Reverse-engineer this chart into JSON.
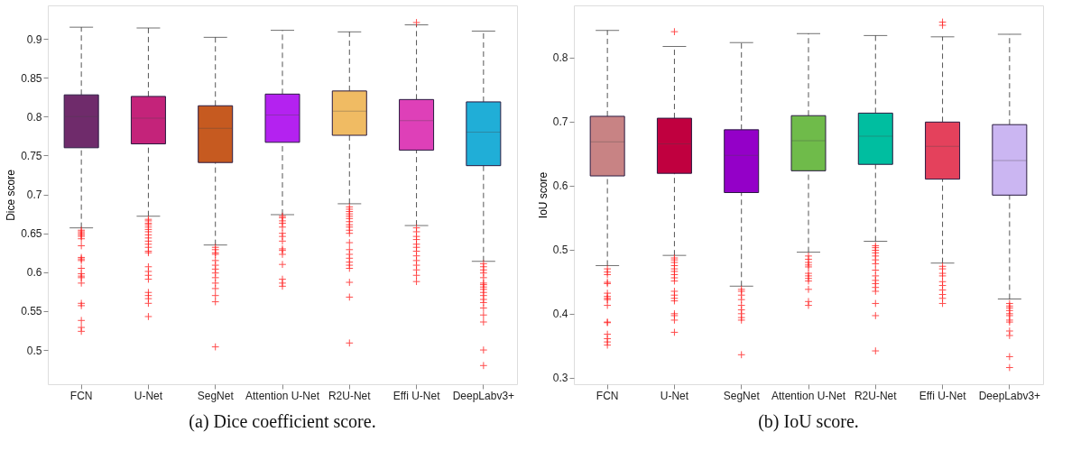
{
  "chart_data": [
    {
      "type": "box",
      "ylabel": "Dice score",
      "annotations": [
        "(a) Dice coefficient score."
      ],
      "categories": [
        "FCN",
        "U-Net",
        "SegNet",
        "Attention U-Net",
        "R2U-Net",
        "Effi U-Net",
        "DeepLabv3+"
      ],
      "colors": [
        "#6f2b6b",
        "#c4237a",
        "#c65a20",
        "#b422f0",
        "#f0bb63",
        "#de40b8",
        "#20aed7"
      ],
      "ylim": [
        0.456,
        0.943
      ],
      "yticks": [
        0.5,
        0.55,
        0.6,
        0.65,
        0.7,
        0.75,
        0.8,
        0.85,
        0.9
      ],
      "grid": false,
      "marker": "cross",
      "line_style": "dashed",
      "boxes": [
        {
          "low": 0.657,
          "q1": 0.76,
          "median": 0.8,
          "q3": 0.828,
          "high": 0.915,
          "outliers": [
            0.654,
            0.652,
            0.65,
            0.648,
            0.646,
            0.643,
            0.634,
            0.619,
            0.617,
            0.615,
            0.605,
            0.598,
            0.595,
            0.593,
            0.586,
            0.56,
            0.557,
            0.538,
            0.529,
            0.524
          ]
        },
        {
          "low": 0.672,
          "q1": 0.765,
          "median": 0.798,
          "q3": 0.826,
          "high": 0.914,
          "outliers": [
            0.668,
            0.666,
            0.663,
            0.661,
            0.658,
            0.655,
            0.652,
            0.648,
            0.644,
            0.64,
            0.636,
            0.632,
            0.627,
            0.625,
            0.607,
            0.601,
            0.596,
            0.591,
            0.574,
            0.57,
            0.566,
            0.56,
            0.543
          ]
        },
        {
          "low": 0.635,
          "q1": 0.741,
          "median": 0.785,
          "q3": 0.814,
          "high": 0.902,
          "outliers": [
            0.632,
            0.629,
            0.625,
            0.623,
            0.615,
            0.609,
            0.604,
            0.599,
            0.593,
            0.586,
            0.579,
            0.57,
            0.562,
            0.504
          ]
        },
        {
          "low": 0.674,
          "q1": 0.767,
          "median": 0.802,
          "q3": 0.829,
          "high": 0.911,
          "outliers": [
            0.672,
            0.67,
            0.666,
            0.663,
            0.658,
            0.65,
            0.646,
            0.64,
            0.63,
            0.628,
            0.623,
            0.61,
            0.591,
            0.586,
            0.582
          ]
        },
        {
          "low": 0.688,
          "q1": 0.776,
          "median": 0.807,
          "q3": 0.833,
          "high": 0.909,
          "outliers": [
            0.684,
            0.681,
            0.678,
            0.675,
            0.672,
            0.669,
            0.665,
            0.661,
            0.658,
            0.654,
            0.65,
            0.638,
            0.629,
            0.623,
            0.618,
            0.613,
            0.609,
            0.605,
            0.587,
            0.568,
            0.509
          ]
        },
        {
          "low": 0.66,
          "q1": 0.757,
          "median": 0.795,
          "q3": 0.822,
          "high": 0.918,
          "outliers": [
            0.921,
            0.657,
            0.652,
            0.646,
            0.642,
            0.636,
            0.632,
            0.627,
            0.621,
            0.615,
            0.609,
            0.603,
            0.596,
            0.588
          ]
        },
        {
          "low": 0.614,
          "q1": 0.737,
          "median": 0.78,
          "q3": 0.819,
          "high": 0.91,
          "outliers": [
            0.611,
            0.607,
            0.603,
            0.599,
            0.593,
            0.586,
            0.584,
            0.581,
            0.578,
            0.574,
            0.57,
            0.565,
            0.561,
            0.554,
            0.545,
            0.536,
            0.5,
            0.48
          ]
        }
      ]
    },
    {
      "type": "box",
      "ylabel": "IoU score",
      "annotations": [
        "(b) IoU score."
      ],
      "categories": [
        "FCN",
        "U-Net",
        "SegNet",
        "Attention U-Net",
        "R2U-Net",
        "Effi U-Net",
        "DeepLabv3+"
      ],
      "colors": [
        "#c88384",
        "#c0003f",
        "#9400c8",
        "#6fbb4a",
        "#00bea0",
        "#e4415c",
        "#cbb6f2"
      ],
      "ylim": [
        0.29,
        0.881
      ],
      "yticks": [
        0.3,
        0.4,
        0.5,
        0.6,
        0.7,
        0.8
      ],
      "grid": false,
      "marker": "cross",
      "line_style": "dashed",
      "boxes": [
        {
          "low": 0.475,
          "q1": 0.615,
          "median": 0.668,
          "q3": 0.708,
          "high": 0.842,
          "outliers": [
            0.47,
            0.465,
            0.461,
            0.449,
            0.447,
            0.432,
            0.427,
            0.424,
            0.422,
            0.413,
            0.387,
            0.386,
            0.368,
            0.361,
            0.356,
            0.351
          ]
        },
        {
          "low": 0.491,
          "q1": 0.619,
          "median": 0.665,
          "q3": 0.705,
          "high": 0.817,
          "outliers": [
            0.84,
            0.487,
            0.484,
            0.48,
            0.475,
            0.47,
            0.466,
            0.461,
            0.456,
            0.451,
            0.435,
            0.429,
            0.424,
            0.42,
            0.4,
            0.397,
            0.39,
            0.371
          ]
        },
        {
          "low": 0.443,
          "q1": 0.589,
          "median": 0.647,
          "q3": 0.687,
          "high": 0.823,
          "outliers": [
            0.438,
            0.435,
            0.429,
            0.422,
            0.413,
            0.406,
            0.4,
            0.394,
            0.39,
            0.336
          ]
        },
        {
          "low": 0.496,
          "q1": 0.623,
          "median": 0.67,
          "q3": 0.709,
          "high": 0.837,
          "outliers": [
            0.49,
            0.485,
            0.48,
            0.476,
            0.473,
            0.463,
            0.459,
            0.455,
            0.451,
            0.438,
            0.419,
            0.413
          ]
        },
        {
          "low": 0.513,
          "q1": 0.633,
          "median": 0.677,
          "q3": 0.713,
          "high": 0.834,
          "outliers": [
            0.506,
            0.503,
            0.499,
            0.495,
            0.49,
            0.484,
            0.478,
            0.468,
            0.459,
            0.452,
            0.447,
            0.441,
            0.435,
            0.416,
            0.397,
            0.342
          ]
        },
        {
          "low": 0.479,
          "q1": 0.61,
          "median": 0.661,
          "q3": 0.699,
          "high": 0.832,
          "outliers": [
            0.855,
            0.85,
            0.474,
            0.47,
            0.463,
            0.459,
            0.45,
            0.444,
            0.437,
            0.43,
            0.424,
            0.416
          ]
        },
        {
          "low": 0.423,
          "q1": 0.585,
          "median": 0.639,
          "q3": 0.695,
          "high": 0.836,
          "outliers": [
            0.416,
            0.412,
            0.409,
            0.405,
            0.4,
            0.397,
            0.39,
            0.387,
            0.373,
            0.366,
            0.333,
            0.316
          ]
        }
      ]
    }
  ]
}
